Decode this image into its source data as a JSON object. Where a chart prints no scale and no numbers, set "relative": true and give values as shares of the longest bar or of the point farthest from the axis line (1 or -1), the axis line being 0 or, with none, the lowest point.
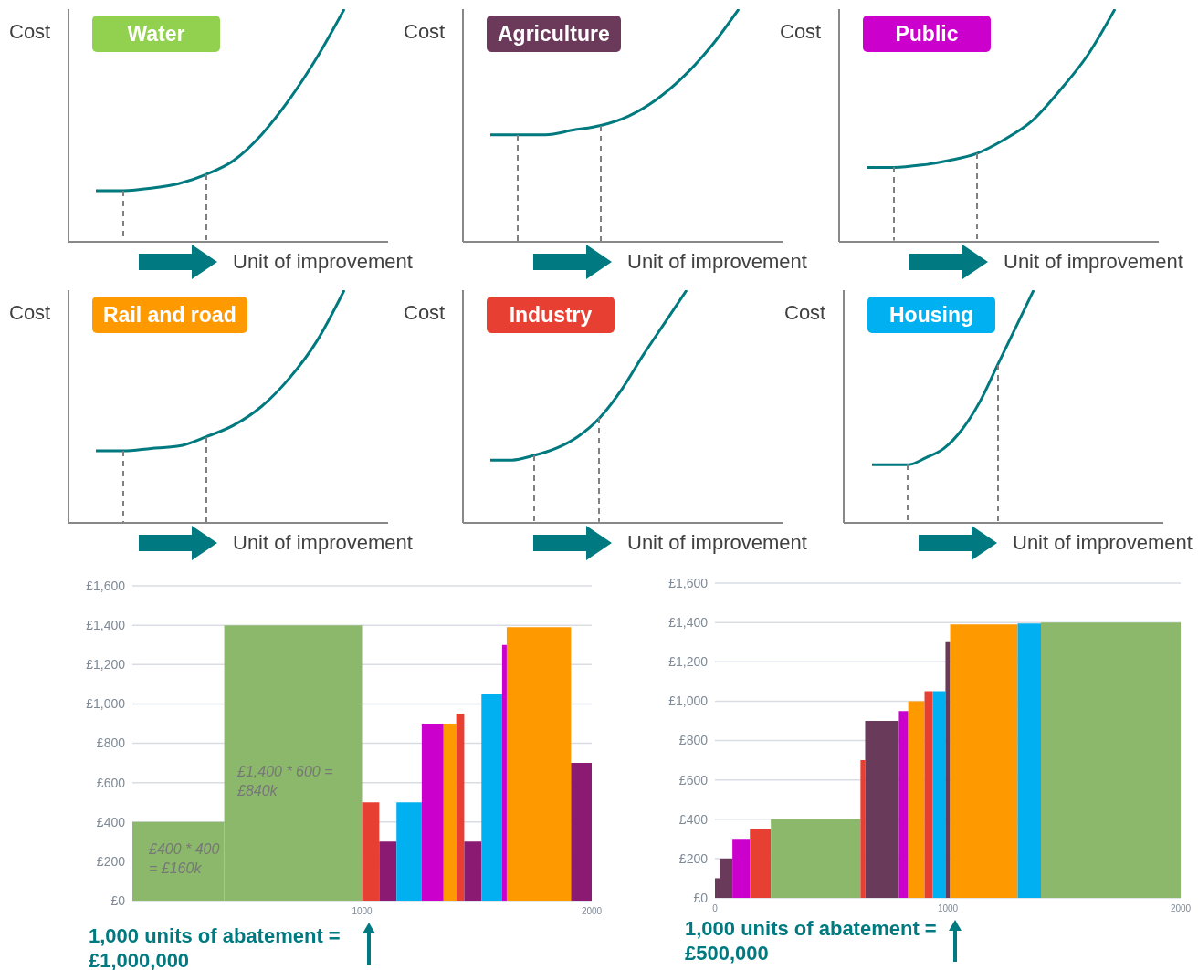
{
  "chart_data": [
    {
      "type": "line",
      "title": "Water",
      "ylabel": "Cost",
      "xlabel": "Unit of improvement",
      "relative": true,
      "marker": "none",
      "line_style": "solid",
      "categories": [
        null,
        null,
        null,
        null,
        null,
        null,
        null,
        null,
        null,
        null
      ],
      "series": [
        {
          "color": "#00797f",
          "values": [
            0.22,
            0.22,
            0.23,
            0.25,
            0.29,
            0.35,
            0.46,
            0.61,
            0.79,
            1
          ]
        }
      ]
    },
    {
      "type": "line",
      "title": "Agriculture",
      "ylabel": "Cost",
      "xlabel": "Unit of improvement",
      "relative": true,
      "marker": "none",
      "line_style": "solid",
      "categories": [
        null,
        null,
        null,
        null,
        null,
        null,
        null,
        null,
        null,
        null
      ],
      "series": [
        {
          "color": "#00797f",
          "values": [
            0.46,
            0.46,
            0.46,
            0.48,
            0.5,
            0.54,
            0.61,
            0.71,
            0.84,
            1
          ]
        }
      ]
    },
    {
      "type": "line",
      "title": "Public",
      "ylabel": "Cost",
      "xlabel": "Unit of improvement",
      "relative": true,
      "marker": "none",
      "line_style": "solid",
      "categories": [
        null,
        null,
        null,
        null,
        null,
        null,
        null,
        null,
        null,
        null
      ],
      "series": [
        {
          "color": "#00797f",
          "values": [
            0.32,
            0.32,
            0.33,
            0.35,
            0.38,
            0.44,
            0.52,
            0.65,
            0.8,
            1
          ]
        }
      ]
    },
    {
      "type": "line",
      "title": "Rail and road",
      "ylabel": "Cost",
      "xlabel": "Unit of improvement",
      "relative": true,
      "marker": "none",
      "line_style": "solid",
      "categories": [
        null,
        null,
        null,
        null,
        null,
        null,
        null,
        null,
        null,
        null
      ],
      "series": [
        {
          "color": "#00797f",
          "values": [
            0.31,
            0.31,
            0.32,
            0.33,
            0.37,
            0.42,
            0.5,
            0.62,
            0.78,
            1
          ]
        }
      ]
    },
    {
      "type": "line",
      "title": "Industry",
      "ylabel": "Cost",
      "xlabel": "Unit of improvement",
      "relative": true,
      "marker": "none",
      "line_style": "solid",
      "categories": [
        null,
        null,
        null,
        null,
        null,
        null,
        null,
        null,
        null,
        null
      ],
      "series": [
        {
          "color": "#00797f",
          "values": [
            0.27,
            0.27,
            0.29,
            0.32,
            0.37,
            0.45,
            0.57,
            0.72,
            0.86,
            1
          ]
        }
      ]
    },
    {
      "type": "line",
      "title": "Housing",
      "ylabel": "Cost",
      "xlabel": "Unit of improvement",
      "relative": true,
      "marker": "none",
      "line_style": "solid",
      "categories": [
        null,
        null,
        null,
        null,
        null,
        null,
        null,
        null,
        null,
        null
      ],
      "series": [
        {
          "color": "#00797f",
          "values": [
            0.25,
            0.25,
            0.25,
            0.28,
            0.32,
            0.4,
            0.52,
            0.68,
            0.84,
            1
          ]
        }
      ]
    },
    {
      "type": "histogram",
      "grid": "y",
      "bins": [
        0,
        400,
        1000,
        1075,
        1150,
        1260,
        1355,
        1410,
        1445,
        1520,
        1610,
        1630,
        1910,
        2000
      ],
      "values": [
        400,
        1400,
        500,
        300,
        500,
        900,
        900,
        950,
        300,
        1050,
        1300,
        1390,
        700
      ],
      "colors": [
        "#8bb86a",
        "#8bb86a",
        "#e83f33",
        "#8b1a73",
        "#00b0f0",
        "#cc00cc",
        "#ff9900",
        "#e83f33",
        "#8b1a73",
        "#00b0f0",
        "#cc00cc",
        "#ff9900",
        "#8b1a73"
      ],
      "xlim": [
        0,
        2000
      ],
      "xticks": [
        1000,
        2000
      ],
      "ylim": [
        0,
        1600
      ],
      "yticks": [
        {
          "value": 0,
          "label": "£0"
        },
        {
          "value": 200,
          "label": "£200"
        },
        {
          "value": 400,
          "label": "£400"
        },
        {
          "value": 600,
          "label": "£600"
        },
        {
          "value": 800,
          "label": "£800"
        },
        {
          "value": 1000,
          "label": "£1,000"
        },
        {
          "value": 1200,
          "label": "£1,200"
        },
        {
          "value": 1400,
          "label": "£1,400"
        },
        {
          "value": 1600,
          "label": "£1,600"
        }
      ],
      "annotations": [
        "£1,400 * 600 = £840k",
        "£400 * 400 = £160k",
        {
          "text": "1,000 units of abatement = £1,000,000",
          "x": 1000,
          "y": 0
        }
      ]
    },
    {
      "type": "histogram",
      "grid": "y",
      "bins": [
        0,
        20,
        75,
        150,
        240,
        625,
        645,
        790,
        830,
        900,
        935,
        990,
        1010,
        1300,
        1400,
        2000
      ],
      "values": [
        100,
        200,
        300,
        350,
        400,
        700,
        900,
        950,
        1000,
        1050,
        1050,
        1300,
        1390,
        1395,
        1400
      ],
      "colors": [
        "#6a3a5a",
        "#6a3a5a",
        "#cc00cc",
        "#e83f33",
        "#8bb86a",
        "#e83f33",
        "#6a3a5a",
        "#cc00cc",
        "#ff9900",
        "#e83f33",
        "#00b0f0",
        "#6a3a5a",
        "#ff9900",
        "#00b0f0",
        "#8bb86a"
      ],
      "xlim": [
        0,
        2000
      ],
      "xticks": [
        0,
        1000,
        2000
      ],
      "ylim": [
        0,
        1600
      ],
      "yticks": [
        {
          "value": 0,
          "label": "£0"
        },
        {
          "value": 200,
          "label": "£200"
        },
        {
          "value": 400,
          "label": "£400"
        },
        {
          "value": 600,
          "label": "£600"
        },
        {
          "value": 800,
          "label": "£800"
        },
        {
          "value": 1000,
          "label": "£1,000"
        },
        {
          "value": 1200,
          "label": "£1,200"
        },
        {
          "value": 1400,
          "label": "£1,400"
        },
        {
          "value": 1600,
          "label": "£1,600"
        }
      ],
      "annotations": [
        {
          "text": "1,000 units of abatement = £500,000",
          "x": 1000,
          "y": 0
        }
      ]
    }
  ]
}
